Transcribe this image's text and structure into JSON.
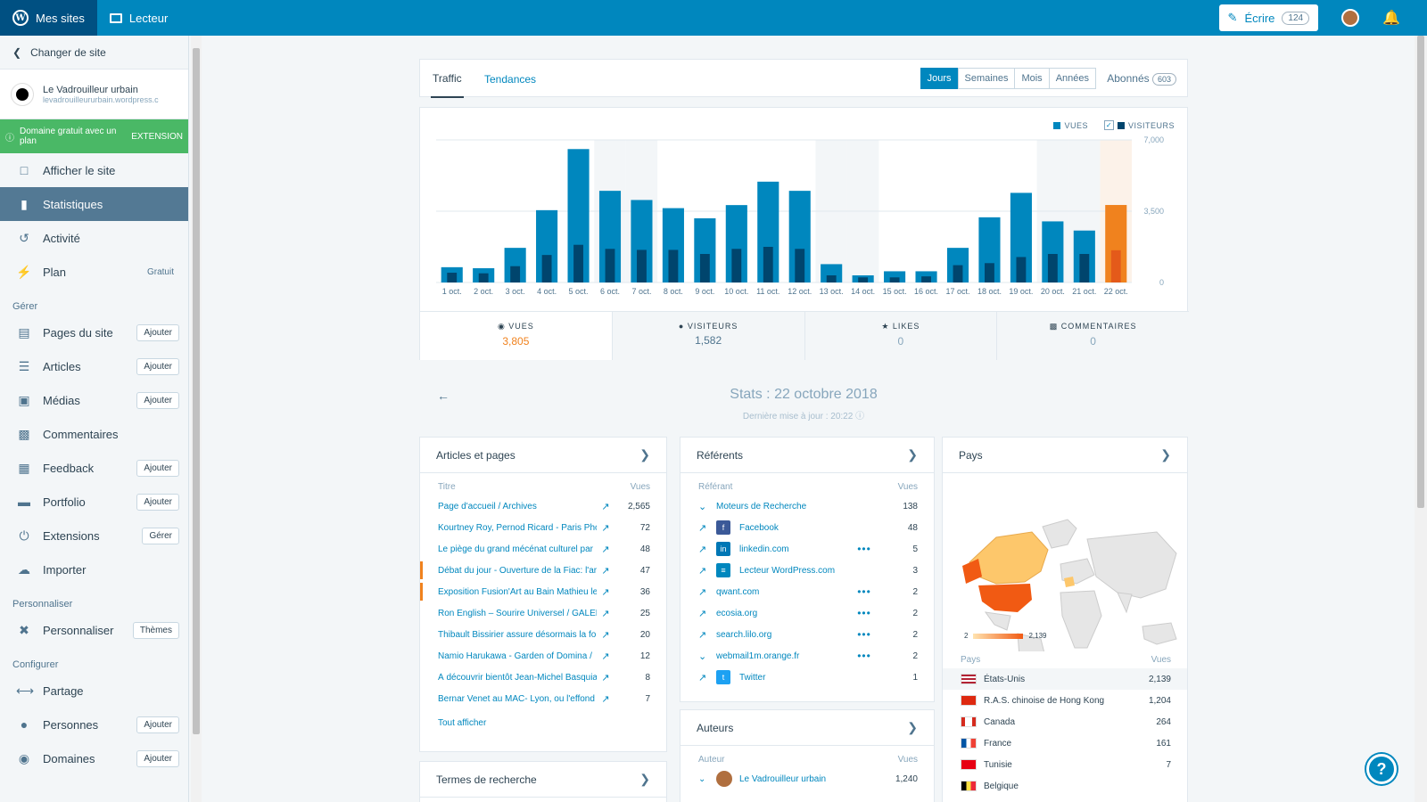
{
  "topbar": {
    "my_sites": "Mes sites",
    "reader": "Lecteur",
    "write": "Écrire",
    "write_count": "124"
  },
  "sidebar": {
    "switch_site": "Changer de site",
    "site_name": "Le Vadrouilleur urbain",
    "site_url": "levadrouilleururbain.wordpress.c",
    "promo_text": "Domaine gratuit avec un plan",
    "promo_action": "EXTENSION",
    "top_items": [
      {
        "label": "Afficher le site"
      },
      {
        "label": "Statistiques"
      },
      {
        "label": "Activité"
      },
      {
        "label": "Plan",
        "extra": "Gratuit"
      }
    ],
    "section_manage": "Gérer",
    "manage_items": [
      {
        "label": "Pages du site",
        "button": "Ajouter"
      },
      {
        "label": "Articles",
        "button": "Ajouter"
      },
      {
        "label": "Médias",
        "button": "Ajouter"
      },
      {
        "label": "Commentaires",
        "button": ""
      },
      {
        "label": "Feedback",
        "button": "Ajouter"
      },
      {
        "label": "Portfolio",
        "button": "Ajouter"
      },
      {
        "label": "Extensions",
        "button": "Gérer"
      },
      {
        "label": "Importer",
        "button": ""
      }
    ],
    "section_personalize": "Personnaliser",
    "personalize_item": {
      "label": "Personnaliser",
      "button": "Thèmes"
    },
    "section_configure": "Configurer",
    "configure_items": [
      {
        "label": "Partage",
        "button": ""
      },
      {
        "label": "Personnes",
        "button": "Ajouter"
      },
      {
        "label": "Domaines",
        "button": "Ajouter"
      }
    ]
  },
  "nav": {
    "tab_traffic": "Traffic",
    "tab_trends": "Tendances",
    "periods": [
      "Jours",
      "Semaines",
      "Mois",
      "Années"
    ],
    "subscribers_label": "Abonnés",
    "subscribers_count": "603"
  },
  "chart_data": {
    "type": "bar",
    "categories": [
      "1 oct.",
      "2 oct.",
      "3 oct.",
      "4 oct.",
      "5 oct.",
      "6 oct.",
      "7 oct.",
      "8 oct.",
      "9 oct.",
      "10 oct.",
      "11 oct.",
      "12 oct.",
      "13 oct.",
      "14 oct.",
      "15 oct.",
      "16 oct.",
      "17 oct.",
      "18 oct.",
      "19 oct.",
      "20 oct.",
      "21 oct.",
      "22 oct."
    ],
    "series": [
      {
        "name": "VUES",
        "values": [
          750,
          700,
          1700,
          3550,
          6550,
          4500,
          4050,
          3650,
          3150,
          3800,
          4950,
          4500,
          900,
          350,
          550,
          550,
          1700,
          3200,
          4400,
          3000,
          2550,
          3805
        ]
      },
      {
        "name": "VISITEURS",
        "values": [
          480,
          450,
          800,
          1350,
          1850,
          1650,
          1600,
          1600,
          1400,
          1650,
          1750,
          1650,
          350,
          250,
          250,
          300,
          850,
          950,
          1250,
          1400,
          1400,
          1582
        ]
      }
    ],
    "highlighted": "22 oct.",
    "weekend_bands": [
      "6 oct.",
      "7 oct.",
      "13 oct.",
      "14 oct.",
      "20 oct.",
      "21 oct."
    ],
    "y_ticks": [
      "7,000",
      "3,500",
      "0"
    ],
    "ylim": [
      0,
      7000
    ],
    "colors": {
      "views": "#0087be",
      "visitors": "#00456d",
      "selected_views": "#f0821e",
      "selected_visitors": "#e45a1a",
      "selected_bg": "#fcf2e9",
      "weekend_bg": "#f3f6f8"
    },
    "legend": [
      {
        "label": "VUES"
      },
      {
        "label": "VISITEURS",
        "checked": true
      }
    ]
  },
  "summary_tabs": [
    {
      "label": "VUES",
      "value": "3,805"
    },
    {
      "label": "VISITEURS",
      "value": "1,582"
    },
    {
      "label": "LIKES",
      "value": "0"
    },
    {
      "label": "COMMENTAIRES",
      "value": "0"
    }
  ],
  "stats_date": {
    "title": "Stats : 22 octobre 2018",
    "subtitle": "Dernière mise à jour : 20:22"
  },
  "posts": {
    "title": "Articles et pages",
    "col_title": "Titre",
    "col_views": "Vues",
    "rows": [
      {
        "label": "Page d'accueil / Archives",
        "value": "2,565"
      },
      {
        "label": "Kourtney Roy, Pernod Ricard - Paris Pho",
        "value": "72"
      },
      {
        "label": "Le piège du grand mécénat culturel par",
        "value": "48"
      },
      {
        "label": "Débat du jour - Ouverture de la Fiac: l'ar",
        "value": "47"
      },
      {
        "label": "Exposition Fusion'Art au Bain Mathieu le",
        "value": "36"
      },
      {
        "label": "Ron English – Sourire Universel / GALER",
        "value": "25"
      },
      {
        "label": "Thibault Bissirier assure désormais la fo",
        "value": "20"
      },
      {
        "label": "Namio Harukawa - Garden of Domina /",
        "value": "12"
      },
      {
        "label": "À découvrir bientôt Jean-Michel Basquia",
        "value": "8"
      },
      {
        "label": "Bernar Venet au MAC- Lyon, ou l'effond",
        "value": "7"
      }
    ],
    "show_all": "Tout afficher"
  },
  "search_terms": {
    "title": "Termes de recherche"
  },
  "referrers": {
    "title": "Référents",
    "col_referrer": "Référant",
    "col_views": "Vues",
    "rows": [
      {
        "label": "Moteurs de Recherche",
        "value": "138",
        "icon": "chevron-down-icon"
      },
      {
        "label": "Facebook",
        "value": "48",
        "icon": "facebook-icon"
      },
      {
        "label": "linkedin.com",
        "value": "5",
        "icon": "linkedin-icon"
      },
      {
        "label": "Lecteur WordPress.com",
        "value": "3",
        "icon": "reader-icon"
      },
      {
        "label": "qwant.com",
        "value": "2",
        "icon": "external-link-icon"
      },
      {
        "label": "ecosia.org",
        "value": "2",
        "icon": "external-link-icon"
      },
      {
        "label": "search.lilo.org",
        "value": "2",
        "icon": "external-link-icon"
      },
      {
        "label": "webmail1m.orange.fr",
        "value": "2",
        "icon": "chevron-down-icon"
      },
      {
        "label": "Twitter",
        "value": "1",
        "icon": "twitter-icon"
      }
    ]
  },
  "authors": {
    "title": "Auteurs",
    "col_author": "Auteur",
    "col_views": "Vues",
    "rows": [
      {
        "label": "Le Vadrouilleur urbain",
        "value": "1,240"
      }
    ]
  },
  "countries": {
    "title": "Pays",
    "scale_min": "2",
    "scale_max": "2,139",
    "col_country": "Pays",
    "col_views": "Vues",
    "rows": [
      {
        "label": "États-Unis",
        "value": "2,139",
        "flag": "us-flag-icon"
      },
      {
        "label": "R.A.S. chinoise de Hong Kong",
        "value": "1,204",
        "flag": "hk-flag-icon"
      },
      {
        "label": "Canada",
        "value": "264",
        "flag": "ca-flag-icon"
      },
      {
        "label": "France",
        "value": "161",
        "flag": "fr-flag-icon"
      },
      {
        "label": "Tunisie",
        "value": "7",
        "flag": "tn-flag-icon"
      },
      {
        "label": "Belgique",
        "value": "",
        "flag": "be-flag-icon"
      }
    ]
  }
}
